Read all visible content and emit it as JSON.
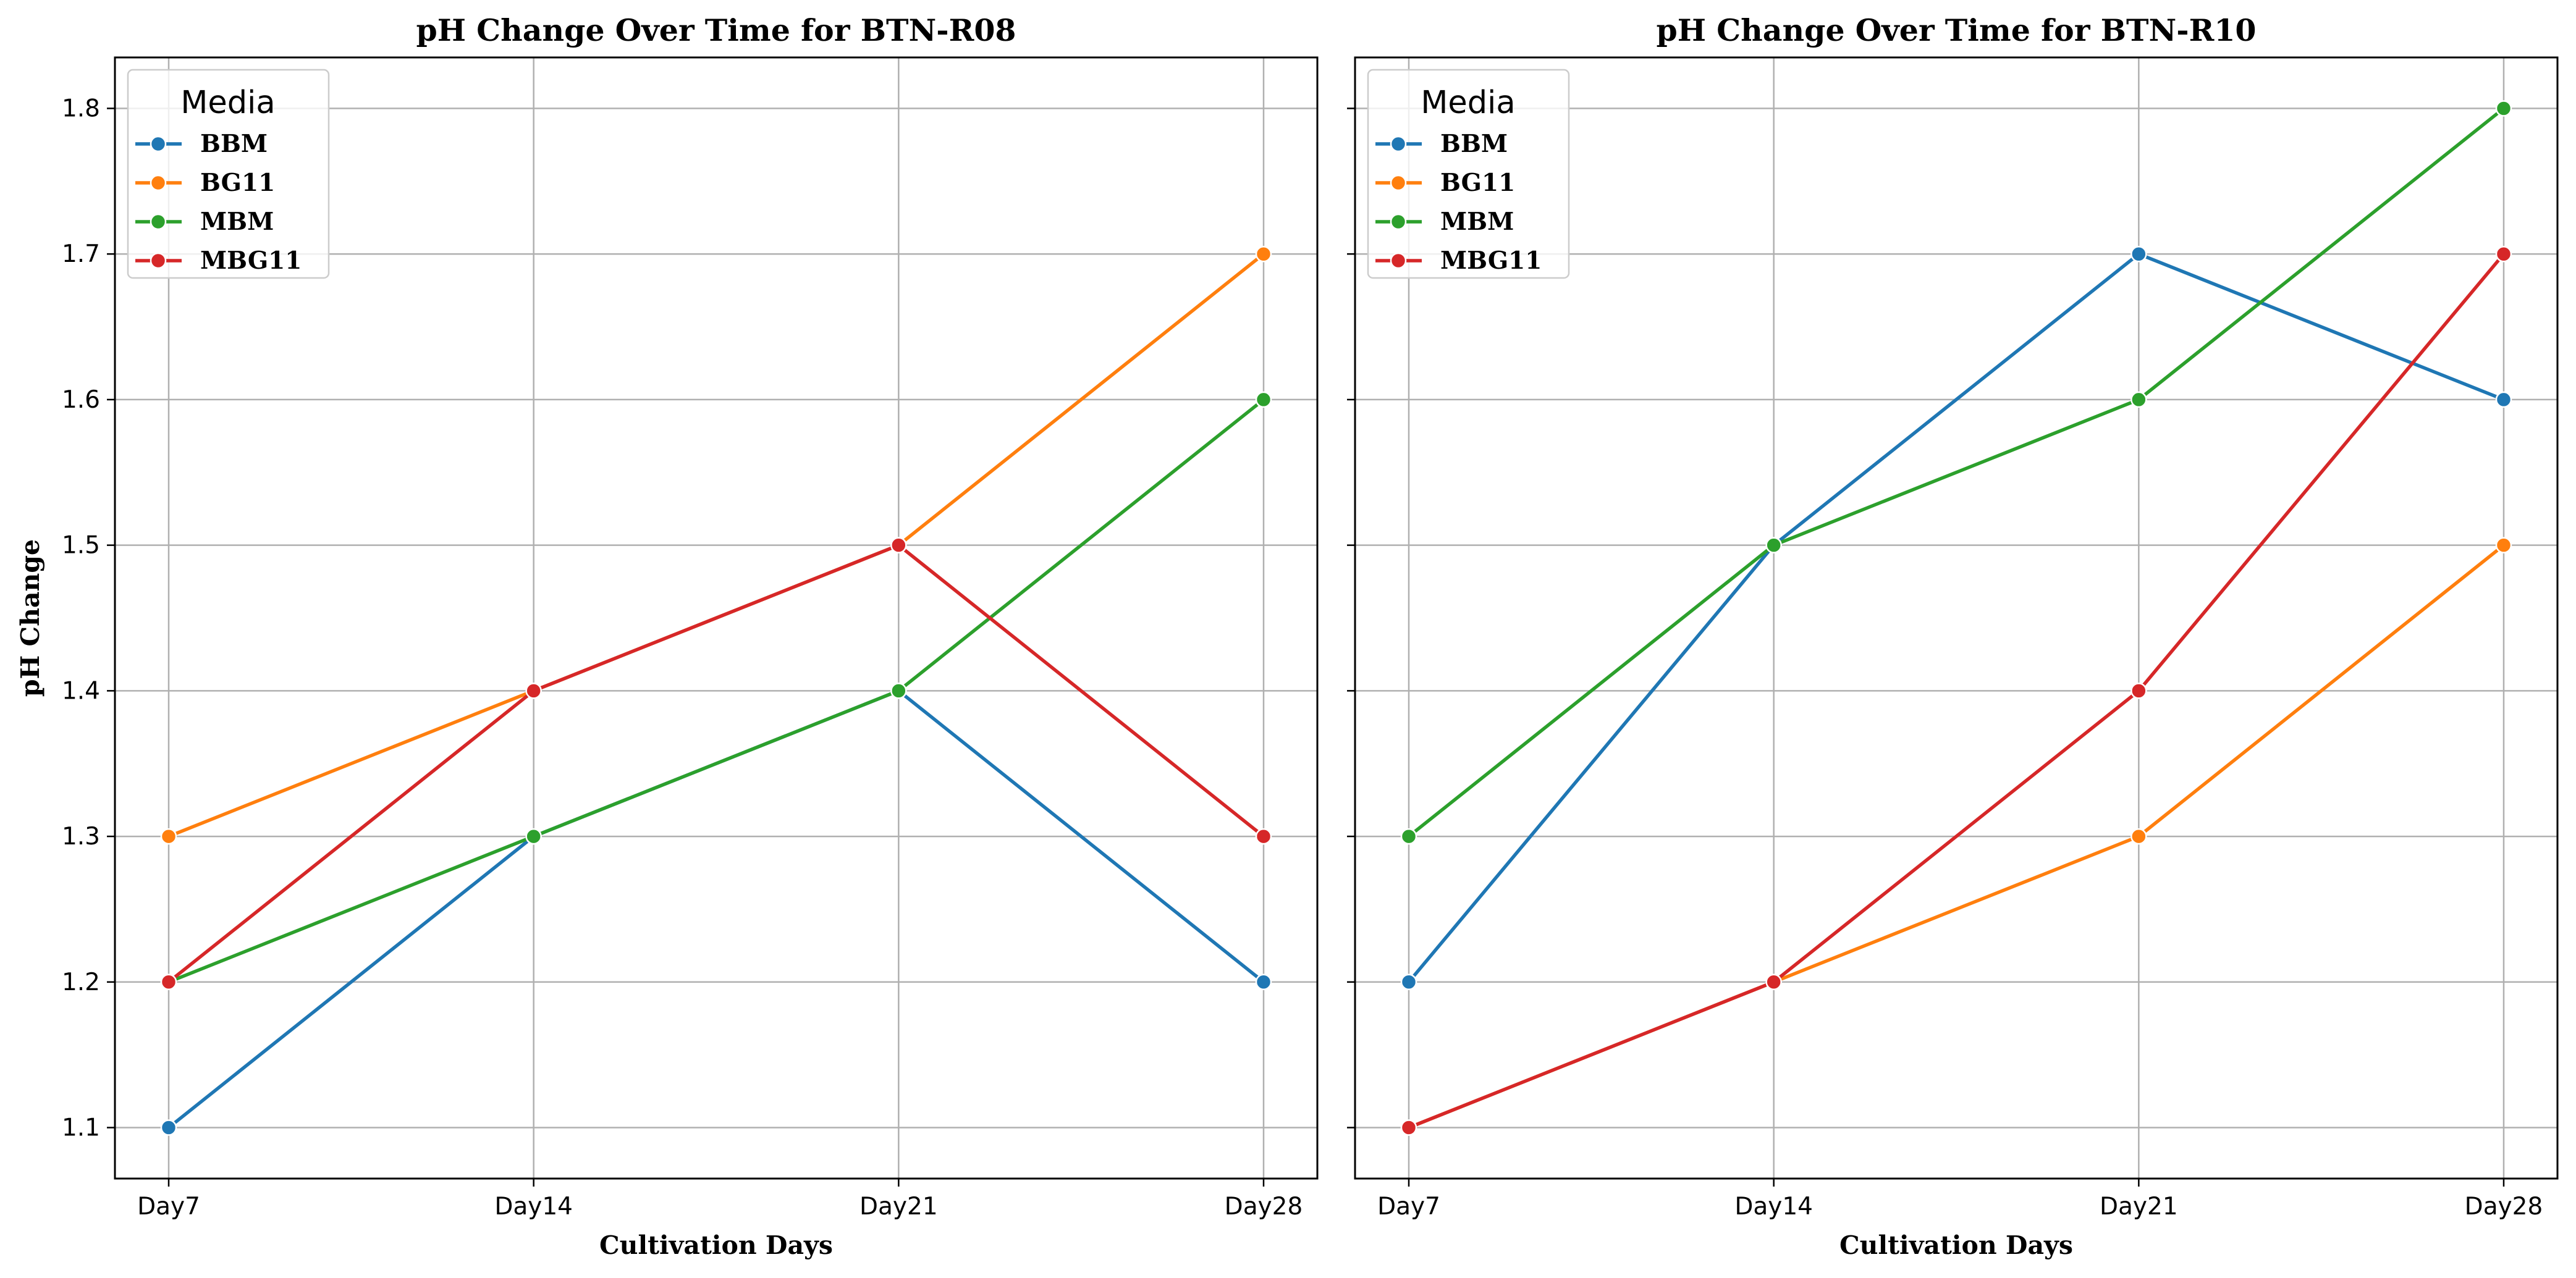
{
  "colors": {
    "BBM": "#1f77b4",
    "BG11": "#ff7f0e",
    "MBM": "#2ca02c",
    "MBG11": "#d62728",
    "grid": "#b0b0b0",
    "axes": "#000000"
  },
  "chart_data": [
    {
      "type": "line",
      "title": "pH Change Over Time for BTN-R08",
      "xlabel": "Cultivation Days",
      "ylabel": "pH Change",
      "categories": [
        "Day7",
        "Day14",
        "Day21",
        "Day28"
      ],
      "yticks": [
        "1.1",
        "1.2",
        "1.3",
        "1.4",
        "1.5",
        "1.6",
        "1.7",
        "1.8"
      ],
      "ylim": [
        1.065,
        1.835
      ],
      "grid": true,
      "legend": {
        "title": "Media",
        "location": "upper-left"
      },
      "series": [
        {
          "name": "BBM",
          "values": [
            1.1,
            1.3,
            1.4,
            1.2
          ]
        },
        {
          "name": "BG11",
          "values": [
            1.3,
            1.4,
            1.5,
            1.7
          ]
        },
        {
          "name": "MBM",
          "values": [
            1.2,
            1.3,
            1.4,
            1.6
          ]
        },
        {
          "name": "MBG11",
          "values": [
            1.2,
            1.4,
            1.5,
            1.3
          ]
        }
      ]
    },
    {
      "type": "line",
      "title": "pH Change Over Time for BTN-R10",
      "xlabel": "Cultivation Days",
      "ylabel": "",
      "categories": [
        "Day7",
        "Day14",
        "Day21",
        "Day28"
      ],
      "yticks": [],
      "ylim": [
        1.065,
        1.835
      ],
      "grid": true,
      "legend": {
        "title": "Media",
        "location": "upper-left"
      },
      "series": [
        {
          "name": "BBM",
          "values": [
            1.2,
            1.5,
            1.7,
            1.6
          ]
        },
        {
          "name": "BG11",
          "values": [
            1.1,
            1.2,
            1.3,
            1.5
          ]
        },
        {
          "name": "MBM",
          "values": [
            1.3,
            1.5,
            1.6,
            1.8
          ]
        },
        {
          "name": "MBG11",
          "values": [
            1.1,
            1.2,
            1.4,
            1.7
          ]
        }
      ]
    }
  ]
}
